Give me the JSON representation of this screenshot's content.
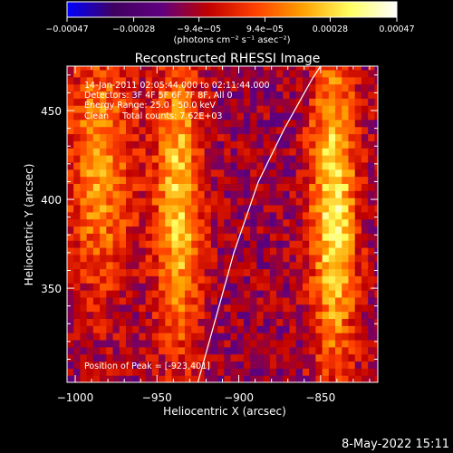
{
  "chart_data": {
    "type": "heatmap",
    "title": "Reconstructed RHESSI Image",
    "xlabel": "Heliocentric X (arcsec)",
    "ylabel": "Heliocentric Y (arcsec)",
    "xlim": [
      -1005,
      -815
    ],
    "ylim": [
      297,
      475
    ],
    "x_ticks": [
      -1000,
      -950,
      -900,
      -850
    ],
    "x_tick_labels": [
      "−1000",
      "−950",
      "−900",
      "−850"
    ],
    "y_ticks": [
      350,
      400,
      450
    ],
    "y_tick_labels": [
      "350",
      "400",
      "450"
    ],
    "colorbar": {
      "range": [
        -0.00047,
        0.00047
      ],
      "tick_values": [
        -0.00047,
        -0.00028,
        -9.4e-05,
        9.4e-05,
        0.00028,
        0.00047
      ],
      "tick_labels": [
        "−0.00047",
        "−0.00028",
        "−9.4e−05",
        "9.4e−05",
        "0.00028",
        "0.00047"
      ],
      "units_label": "(photons cm⁻² s⁻¹ asec⁻²)",
      "colors": [
        "#0000ff",
        "#400060",
        "#600080",
        "#c00000",
        "#ff4000",
        "#ffa000",
        "#ffff60",
        "#ffffff"
      ]
    },
    "sources": [
      {
        "x": -985,
        "y": 420,
        "sx": 14,
        "sy": 50,
        "peak": 0.00032
      },
      {
        "x": -937,
        "y": 400,
        "sx": 10,
        "sy": 60,
        "peak": 0.0004
      },
      {
        "x": -842,
        "y": 395,
        "sx": 10,
        "sy": 65,
        "peak": 0.00045
      }
    ],
    "limb_curve": [
      [
        -925,
        297
      ],
      [
        -915,
        330
      ],
      [
        -903,
        370
      ],
      [
        -888,
        410
      ],
      [
        -872,
        440
      ],
      [
        -855,
        468
      ],
      [
        -850,
        475
      ]
    ],
    "peak_marker": {
      "x": -923,
      "y": 401
    },
    "annotations": [
      "14-Jan-2011 02:05:44.000 to 02:11:44.000",
      "Detectors: 3F 4F 5F 6F 7F 8F, All 0",
      "Energy Range: 25.0 - 50.0 keV",
      "Clean     Total counts: 7.62E+03"
    ],
    "peak_text": "Position of Peak = [-923,401]"
  },
  "footer": {
    "timestamp": "8-May-2022 15:11"
  }
}
